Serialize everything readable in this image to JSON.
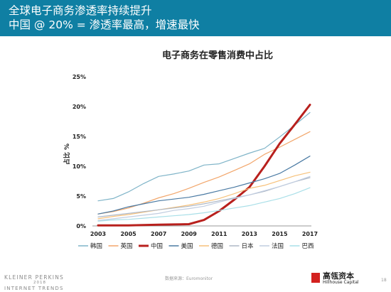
{
  "header": {
    "line1": "全球电子商务渗透率持续提升",
    "line2": "中国 @ 20% = 渗透率最高，增速最快"
  },
  "chart_data": {
    "type": "line",
    "title": "电子商务在零售消费中占比",
    "ylabel": "占比 %",
    "xlabel": "",
    "x": [
      2003,
      2004,
      2005,
      2006,
      2007,
      2008,
      2009,
      2010,
      2011,
      2012,
      2013,
      2014,
      2015,
      2016,
      2017
    ],
    "x_ticks": [
      "2003",
      "2005",
      "2007",
      "2009",
      "2011",
      "2013",
      "2015",
      "2017"
    ],
    "y_ticks": [
      "0%",
      "5%",
      "10%",
      "15%",
      "20%",
      "25%"
    ],
    "ylim": [
      0,
      25
    ],
    "grid": false,
    "legend_position": "bottom",
    "series": [
      {
        "name": "韩国",
        "color": "#7fb4c8",
        "width": 1.2,
        "values": [
          4.2,
          4.6,
          5.7,
          7.1,
          8.3,
          8.7,
          9.2,
          10.2,
          10.4,
          11.3,
          12.2,
          13.0,
          14.9,
          16.9,
          19.0
        ]
      },
      {
        "name": "英国",
        "color": "#f2a66b",
        "width": 1.2,
        "values": [
          2.0,
          2.4,
          3.0,
          3.8,
          4.7,
          5.4,
          6.3,
          7.3,
          8.2,
          9.3,
          10.4,
          12.0,
          13.2,
          14.5,
          15.8
        ]
      },
      {
        "name": "中国",
        "color": "#b8201d",
        "width": 3.0,
        "values": [
          0.1,
          0.1,
          0.1,
          0.15,
          0.2,
          0.25,
          0.3,
          1.0,
          2.5,
          4.4,
          6.5,
          10.0,
          13.8,
          17.0,
          20.3
        ]
      },
      {
        "name": "美国",
        "color": "#4a7aa3",
        "width": 1.2,
        "values": [
          2.0,
          2.5,
          3.2,
          3.7,
          4.2,
          4.5,
          4.8,
          5.3,
          5.9,
          6.5,
          7.2,
          7.9,
          8.8,
          10.2,
          11.7
        ]
      },
      {
        "name": "德国",
        "color": "#f7c17a",
        "width": 1.2,
        "values": [
          1.2,
          1.6,
          1.9,
          2.3,
          2.7,
          3.1,
          3.5,
          4.0,
          4.6,
          5.4,
          6.3,
          6.8,
          7.6,
          8.4,
          9.0
        ]
      },
      {
        "name": "日本",
        "color": "#aeb8c6",
        "width": 1.2,
        "values": [
          1.5,
          1.8,
          2.1,
          2.4,
          2.7,
          3.0,
          3.3,
          3.7,
          4.2,
          4.7,
          5.2,
          5.8,
          6.6,
          7.4,
          8.1
        ]
      },
      {
        "name": "法国",
        "color": "#c1cde0",
        "width": 1.2,
        "values": [
          0.9,
          1.2,
          1.5,
          1.8,
          2.1,
          2.6,
          2.9,
          3.3,
          4.0,
          4.6,
          5.2,
          5.9,
          6.6,
          7.4,
          8.3
        ]
      },
      {
        "name": "巴西",
        "color": "#a9dfe8",
        "width": 1.2,
        "values": [
          0.8,
          1.0,
          1.1,
          1.3,
          1.5,
          1.7,
          1.9,
          2.2,
          2.6,
          3.0,
          3.4,
          4.0,
          4.6,
          5.4,
          6.4
        ]
      }
    ]
  },
  "footer": {
    "brand_line1": "KLEINER PERKINS",
    "brand_year": "2018",
    "brand_line2": "INTERNET TRENDS",
    "source": "数据来源：Euromonitor",
    "logo_cn": "高瓴资本",
    "logo_en": "Hillhouse Capital",
    "page": "18"
  }
}
